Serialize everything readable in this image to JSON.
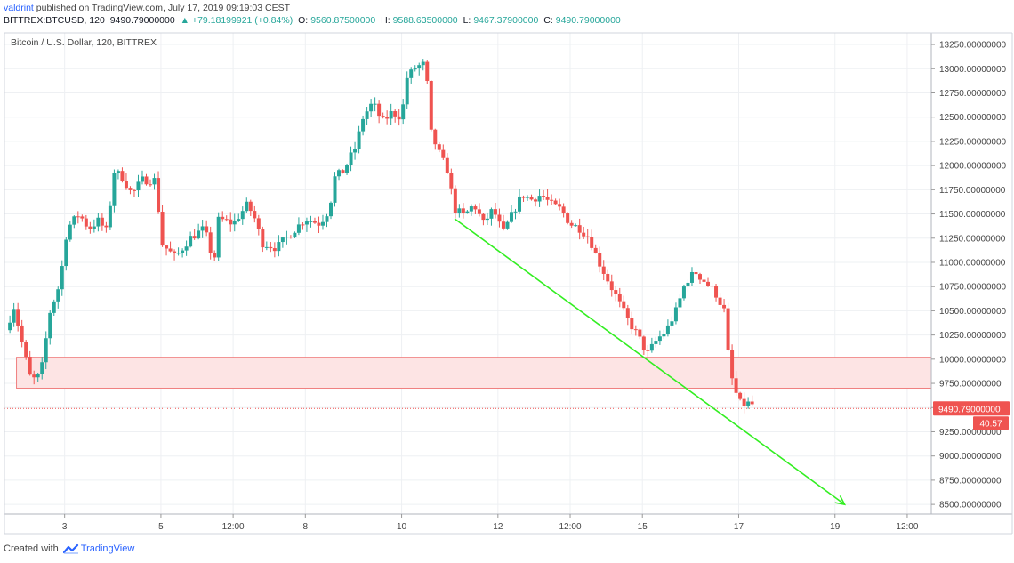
{
  "header": {
    "author": "valdrint",
    "published_text": "published on TradingView.com, July 17, 2019 09:19:03 CEST",
    "symbol": "BITTREX:BTCUSD, 120",
    "last": "9490.79000000",
    "change": "▲ +79.18199921 (+0.84%)",
    "o_label": "O:",
    "o_value": "9560.87500000",
    "h_label": "H:",
    "h_value": "9588.63500000",
    "l_label": "L:",
    "l_value": "9467.37900000",
    "c_label": "C:",
    "c_value": "9490.79000000"
  },
  "footer": {
    "created_with": "Created with",
    "brand": "TradingView"
  },
  "colors": {
    "up": "#26a69a",
    "down": "#ef5350",
    "trendline": "#33ee22",
    "zone_fill": "#fde4e4",
    "zone_border": "#f08080",
    "price_tag": "#ef5350",
    "grid": "#eef0f3",
    "axis_text": "#444444"
  },
  "chart_data": {
    "type": "candlestick",
    "title": "Bitcoin / U.S. Dollar, 120, BITTREX",
    "x_ticks": [
      {
        "label": "3",
        "x": 3
      },
      {
        "label": "5",
        "x": 5
      },
      {
        "label": "12:00",
        "x": 6.5
      },
      {
        "label": "8",
        "x": 8
      },
      {
        "label": "10",
        "x": 10
      },
      {
        "label": "12",
        "x": 12
      },
      {
        "label": "12:00",
        "x": 13.5
      },
      {
        "label": "15",
        "x": 15
      },
      {
        "label": "17",
        "x": 17
      },
      {
        "label": "19",
        "x": 19
      },
      {
        "label": "12:00",
        "x": 20.5
      }
    ],
    "xlim": [
      1.75,
      21.0
    ],
    "ylim": [
      8400,
      13370
    ],
    "y_ticks": [
      "8500.00000000",
      "8750.00000000",
      "9000.00000000",
      "9250.00000000",
      "9500.00000000",
      "9750.00000000",
      "10000.00000000",
      "10250.00000000",
      "10500.00000000",
      "10750.00000000",
      "11000.00000000",
      "11250.00000000",
      "11500.00000000",
      "11750.00000000",
      "12000.00000000",
      "12250.00000000",
      "12500.00000000",
      "12750.00000000",
      "13000.00000000",
      "13250.00000000"
    ],
    "current_price": {
      "value": 9490.79,
      "label": "9490.79000000",
      "countdown": "40:57"
    },
    "support_zone": {
      "x_start": 2.0,
      "x_end": 21.0,
      "y_low": 9700,
      "y_high": 10020
    },
    "trendline": {
      "x1": 11.1,
      "y1": 11450,
      "x2": 19.2,
      "y2": 8500
    },
    "anchors": [
      [
        1.78,
        10300
      ],
      [
        1.95,
        10550
      ],
      [
        2.1,
        10200
      ],
      [
        2.3,
        9780
      ],
      [
        2.5,
        9830
      ],
      [
        2.7,
        10500
      ],
      [
        2.9,
        10780
      ],
      [
        3.05,
        11350
      ],
      [
        3.3,
        11500
      ],
      [
        3.5,
        11350
      ],
      [
        3.7,
        11430
      ],
      [
        3.9,
        11300
      ],
      [
        4.0,
        11950
      ],
      [
        4.2,
        11880
      ],
      [
        4.4,
        11700
      ],
      [
        4.6,
        11850
      ],
      [
        4.9,
        11850
      ],
      [
        5.0,
        11200
      ],
      [
        5.3,
        11050
      ],
      [
        5.6,
        11250
      ],
      [
        5.9,
        11350
      ],
      [
        6.1,
        11000
      ],
      [
        6.2,
        11450
      ],
      [
        6.5,
        11400
      ],
      [
        6.8,
        11600
      ],
      [
        6.95,
        11450
      ],
      [
        7.1,
        11200
      ],
      [
        7.4,
        11150
      ],
      [
        7.7,
        11300
      ],
      [
        8.0,
        11450
      ],
      [
        8.3,
        11400
      ],
      [
        8.5,
        11550
      ],
      [
        8.6,
        11870
      ],
      [
        8.8,
        11950
      ],
      [
        9.05,
        12200
      ],
      [
        9.2,
        12500
      ],
      [
        9.4,
        12650
      ],
      [
        9.6,
        12450
      ],
      [
        9.8,
        12550
      ],
      [
        10.0,
        12500
      ],
      [
        10.1,
        12900
      ],
      [
        10.3,
        13020
      ],
      [
        10.5,
        13050
      ],
      [
        10.6,
        12350
      ],
      [
        10.8,
        12100
      ],
      [
        10.95,
        11950
      ],
      [
        11.1,
        11550
      ],
      [
        11.3,
        11480
      ],
      [
        11.5,
        11600
      ],
      [
        11.7,
        11400
      ],
      [
        11.9,
        11550
      ],
      [
        12.1,
        11300
      ],
      [
        12.3,
        11500
      ],
      [
        12.5,
        11700
      ],
      [
        12.7,
        11650
      ],
      [
        12.9,
        11700
      ],
      [
        13.1,
        11600
      ],
      [
        13.3,
        11550
      ],
      [
        13.5,
        11400
      ],
      [
        13.7,
        11350
      ],
      [
        13.9,
        11250
      ],
      [
        14.1,
        11000
      ],
      [
        14.3,
        10800
      ],
      [
        14.5,
        10600
      ],
      [
        14.7,
        10400
      ],
      [
        14.9,
        10250
      ],
      [
        15.1,
        10050
      ],
      [
        15.3,
        10200
      ],
      [
        15.5,
        10300
      ],
      [
        15.7,
        10500
      ],
      [
        15.9,
        10800
      ],
      [
        16.1,
        10900
      ],
      [
        16.3,
        10800
      ],
      [
        16.5,
        10700
      ],
      [
        16.7,
        10500
      ],
      [
        16.8,
        9950
      ],
      [
        16.9,
        9700
      ],
      [
        17.05,
        9520
      ],
      [
        17.25,
        9550
      ],
      [
        17.35,
        9490
      ]
    ]
  }
}
